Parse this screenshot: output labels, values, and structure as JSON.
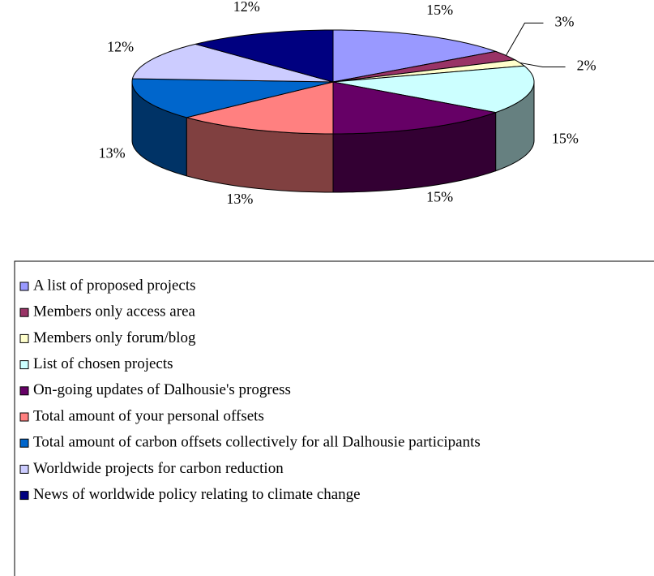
{
  "chart_data": {
    "type": "pie",
    "categories": [
      "A list of proposed projects",
      "Members only access area",
      "Members only forum/blog",
      "List of chosen projects",
      "On-going updates of Dalhousie's progress",
      "Total amount of your personal offsets",
      "Total amount of carbon offsets collectively for all Dalhousie participants",
      "Worldwide projects for carbon reduction",
      "News of worldwide policy relating to climate change"
    ],
    "values": [
      15,
      3,
      2,
      15,
      15,
      13,
      13,
      12,
      12
    ],
    "value_labels": [
      "15%",
      "3%",
      "2%",
      "15%",
      "15%",
      "13%",
      "13%",
      "12%",
      "12%"
    ],
    "colors": [
      "#9999ff",
      "#993366",
      "#ffffcc",
      "#ccffff",
      "#660066",
      "#ff8080",
      "#0066cc",
      "#ccccff",
      "#000080"
    ],
    "legend": "bottom"
  }
}
